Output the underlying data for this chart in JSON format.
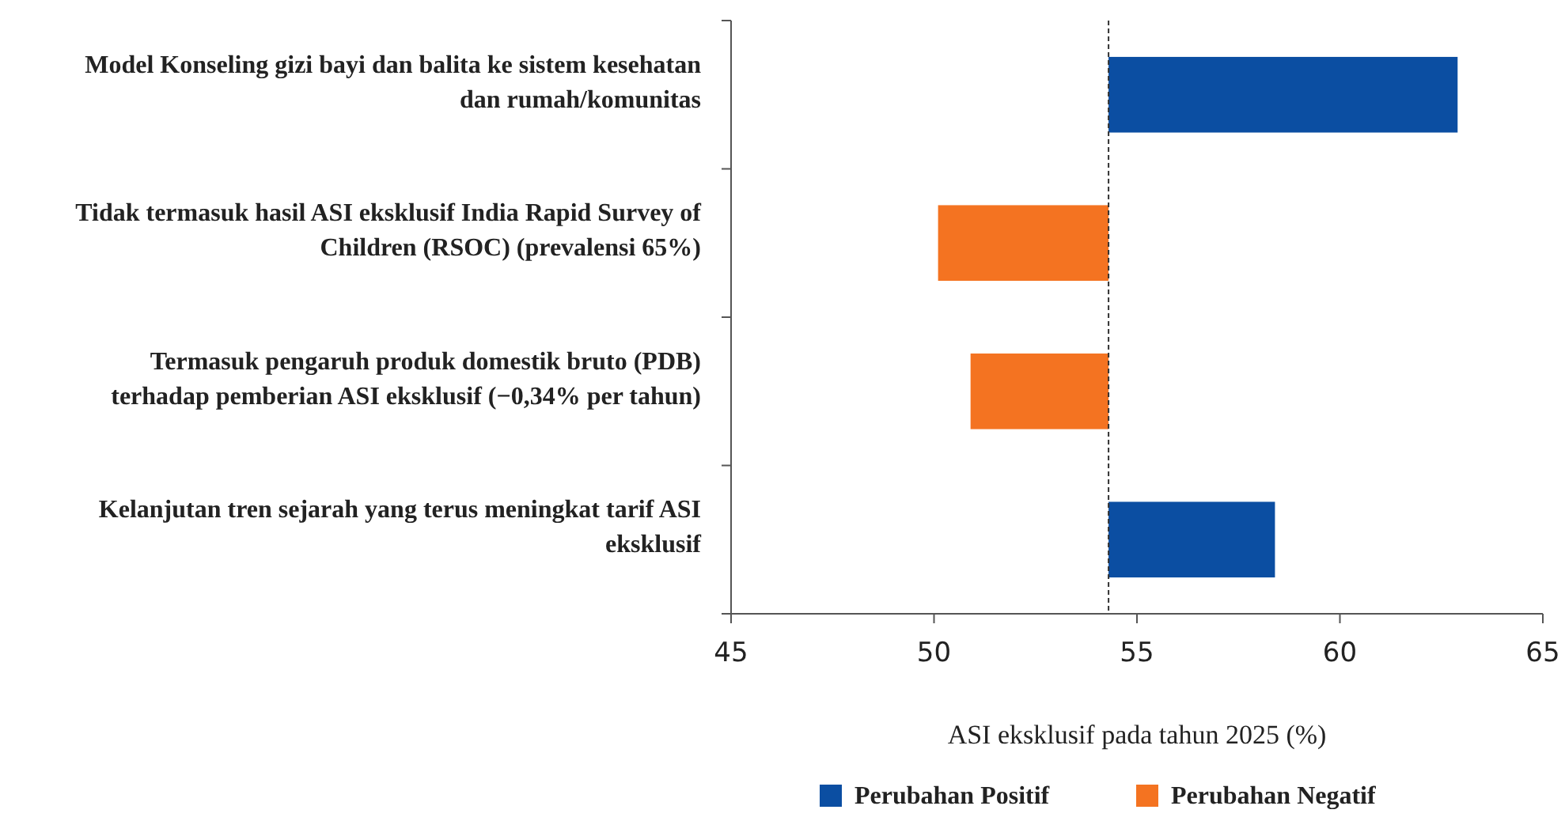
{
  "chart_data": {
    "type": "bar",
    "orientation": "horizontal",
    "xlabel": "ASI eksklusif pada tahun 2025 (%)",
    "categories": [
      "Model Konseling gizi bayi dan balita ke sistem kesehatan dan rumah/komunitas",
      "Tidak termasuk hasil ASI eksklusif India Rapid Survey of Children (RSOC) (prevalensi 65%)",
      "Termasuk pengaruh produk domestik bruto (PDB) terhadap pemberian ASI eksklusif (−0,34% per tahun)",
      "Kelanjutan tren sejarah yang terus meningkat tarif ASI eksklusif"
    ],
    "series": [
      {
        "name": "Perubahan Positif",
        "color": "#0b4ea2",
        "base": [
          54.3,
          null,
          null,
          54.3
        ],
        "values": [
          8.6,
          null,
          null,
          4.1
        ]
      },
      {
        "name": "Perubahan Negatif",
        "color": "#f47321",
        "base": [
          null,
          50.1,
          50.9,
          null
        ],
        "values": [
          null,
          4.2,
          3.4,
          null
        ]
      }
    ],
    "xlim": [
      45,
      65
    ],
    "xticks": [
      45,
      50,
      55,
      60,
      65
    ],
    "ref_lines": [
      {
        "axis": "x",
        "value": 54.3,
        "line_style": "dashed",
        "color": "#333333"
      }
    ],
    "grid": false,
    "legend": "bottom"
  }
}
